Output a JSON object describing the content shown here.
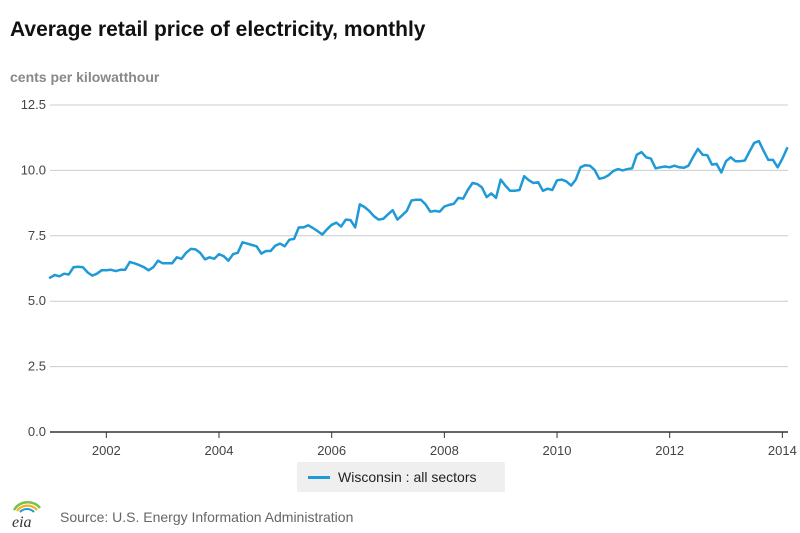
{
  "title": "Average retail price of electricity, monthly",
  "source": "Source: U.S. Energy Information Administration",
  "logo_text": "eia",
  "colors": {
    "series": "#1f9ad6",
    "grid": "#cccccc",
    "axis": "#333333"
  },
  "chart_data": {
    "type": "line",
    "title": "Average retail price of electricity, monthly",
    "ylabel": "cents per kilowatthour",
    "xlabel": "",
    "xlim": [
      2001.0,
      2014.1
    ],
    "ylim": [
      0,
      12.5
    ],
    "yticks": [
      "0.0",
      "2.5",
      "5.0",
      "7.5",
      "10.0",
      "12.5"
    ],
    "xticks": [
      "2002",
      "2004",
      "2006",
      "2008",
      "2010",
      "2012",
      "2014"
    ],
    "grid": true,
    "legend_position": "bottom-center",
    "series": [
      {
        "name": "Wisconsin : all sectors",
        "x_start": "2001-01",
        "frequency": "monthly",
        "values": [
          5.9,
          6.0,
          5.95,
          6.05,
          6.02,
          6.3,
          6.32,
          6.3,
          6.1,
          5.98,
          6.05,
          6.18,
          6.18,
          6.2,
          6.15,
          6.2,
          6.2,
          6.5,
          6.45,
          6.38,
          6.3,
          6.18,
          6.3,
          6.55,
          6.45,
          6.45,
          6.45,
          6.68,
          6.62,
          6.85,
          7.0,
          6.98,
          6.85,
          6.6,
          6.68,
          6.62,
          6.8,
          6.72,
          6.55,
          6.8,
          6.85,
          7.25,
          7.2,
          7.15,
          7.1,
          6.82,
          6.92,
          6.92,
          7.12,
          7.2,
          7.1,
          7.35,
          7.38,
          7.82,
          7.82,
          7.9,
          7.8,
          7.68,
          7.55,
          7.75,
          7.92,
          8.0,
          7.85,
          8.12,
          8.1,
          7.82,
          8.7,
          8.6,
          8.45,
          8.25,
          8.12,
          8.15,
          8.32,
          8.48,
          8.12,
          8.28,
          8.45,
          8.85,
          8.88,
          8.88,
          8.7,
          8.42,
          8.45,
          8.42,
          8.62,
          8.68,
          8.72,
          8.95,
          8.92,
          9.25,
          9.52,
          9.48,
          9.35,
          8.98,
          9.12,
          8.95,
          9.65,
          9.42,
          9.22,
          9.22,
          9.25,
          9.78,
          9.62,
          9.52,
          9.55,
          9.22,
          9.3,
          9.25,
          9.62,
          9.65,
          9.58,
          9.42,
          9.65,
          10.12,
          10.2,
          10.18,
          10.02,
          9.68,
          9.72,
          9.82,
          9.98,
          10.05,
          10.0,
          10.05,
          10.08,
          10.6,
          10.7,
          10.5,
          10.45,
          10.08,
          10.12,
          10.15,
          10.12,
          10.18,
          10.12,
          10.1,
          10.18,
          10.52,
          10.82,
          10.6,
          10.58,
          10.22,
          10.25,
          9.92,
          10.35,
          10.5,
          10.35,
          10.35,
          10.38,
          10.72,
          11.05,
          11.12,
          10.75,
          10.4,
          10.4,
          10.12,
          10.45,
          10.85
        ]
      }
    ]
  }
}
